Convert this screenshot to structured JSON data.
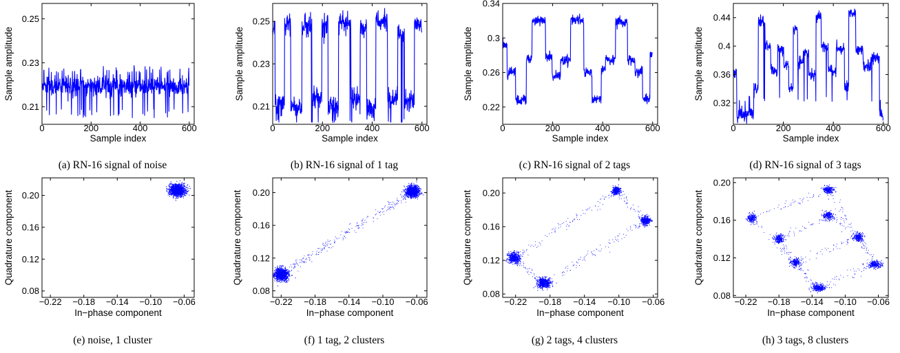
{
  "page": {
    "background": "#ffffff",
    "series_color": "#0000ff"
  },
  "chart_data": [
    {
      "id": "a",
      "type": "line",
      "caption": "(a) RN-16 signal of noise",
      "xlabel": "Sample index",
      "ylabel": "Sample amplitude",
      "xlim": [
        0,
        620
      ],
      "ylim": [
        0.202,
        0.257
      ],
      "xticks": [
        0,
        200,
        400,
        600
      ],
      "xtick_labels": [
        "0",
        "200",
        "400",
        "600"
      ],
      "yticks": [
        0.21,
        0.23,
        0.25
      ],
      "ytick_labels": [
        "0.21",
        "0.23",
        "0.25"
      ],
      "signal": {
        "n": 600,
        "base": 0.2195,
        "noise": 0.0022,
        "high_level": 0.2255,
        "high_prob": 0.06,
        "low_level": 0.209,
        "low_prob": 0.045,
        "spike_floor": 0.205,
        "levels": [],
        "seed": 11
      }
    },
    {
      "id": "b",
      "type": "line",
      "caption": "(b) RN-16 signal of 1 tag",
      "xlabel": "Sample index",
      "ylabel": "Sample amplitude",
      "xlim": [
        0,
        620
      ],
      "ylim": [
        0.2015,
        0.2585
      ],
      "xticks": [
        0,
        200,
        400,
        600
      ],
      "xtick_labels": [
        "0",
        "200",
        "400",
        "600"
      ],
      "yticks": [
        0.21,
        0.23,
        0.25
      ],
      "ytick_labels": [
        "0.21",
        "0.23",
        "0.25"
      ],
      "signal": {
        "n": 600,
        "noise": 0.0026,
        "high_level": 0,
        "high_prob": 0,
        "low_level": 0.204,
        "low_prob": 0.04,
        "spike_floor": 0.2025,
        "levels": [
          [
            0,
            10,
            0.246
          ],
          [
            10,
            48,
            0.212
          ],
          [
            48,
            73,
            0.248
          ],
          [
            73,
            118,
            0.209
          ],
          [
            118,
            158,
            0.248
          ],
          [
            158,
            198,
            0.214
          ],
          [
            198,
            223,
            0.249
          ],
          [
            223,
            265,
            0.21
          ],
          [
            265,
            315,
            0.249
          ],
          [
            315,
            352,
            0.213
          ],
          [
            352,
            378,
            0.247
          ],
          [
            378,
            415,
            0.209
          ],
          [
            415,
            462,
            0.249
          ],
          [
            462,
            503,
            0.213
          ],
          [
            503,
            530,
            0.245
          ],
          [
            530,
            570,
            0.212
          ],
          [
            570,
            600,
            0.248
          ]
        ],
        "seed": 23
      }
    },
    {
      "id": "c",
      "type": "line",
      "caption": "(c) RN-16 signal of 2 tags",
      "xlabel": "Sample index",
      "ylabel": "Sample amplitude",
      "xlim": [
        0,
        620
      ],
      "ylim": [
        0.2,
        0.34
      ],
      "xticks": [
        0,
        200,
        400,
        600
      ],
      "xtick_labels": [
        "0",
        "200",
        "400",
        "600"
      ],
      "yticks": [
        0.22,
        0.26,
        0.3,
        0.34
      ],
      "ytick_labels": [
        "0.22",
        "0.26",
        "0.3",
        "0.34"
      ],
      "signal": {
        "n": 600,
        "noise": 0.003,
        "high_level": 0,
        "high_prob": 0,
        "low_level": 0,
        "low_prob": 0,
        "spike_floor": 0.21,
        "levels": [
          [
            0,
            18,
            0.293
          ],
          [
            18,
            25,
            0.258
          ],
          [
            25,
            52,
            0.262
          ],
          [
            52,
            95,
            0.228
          ],
          [
            95,
            118,
            0.276
          ],
          [
            118,
            172,
            0.32
          ],
          [
            172,
            198,
            0.278
          ],
          [
            198,
            232,
            0.255
          ],
          [
            232,
            272,
            0.275
          ],
          [
            272,
            325,
            0.321
          ],
          [
            325,
            358,
            0.26
          ],
          [
            358,
            395,
            0.23
          ],
          [
            395,
            412,
            0.263
          ],
          [
            412,
            452,
            0.275
          ],
          [
            452,
            500,
            0.319
          ],
          [
            500,
            530,
            0.275
          ],
          [
            530,
            550,
            0.26
          ],
          [
            550,
            560,
            0.262
          ],
          [
            560,
            590,
            0.23
          ],
          [
            590,
            600,
            0.281
          ]
        ],
        "seed": 37
      }
    },
    {
      "id": "d",
      "type": "line",
      "caption": "(d) RN-16 signal of 3 tags",
      "xlabel": "Sample index",
      "ylabel": "Sample amplitude",
      "xlim": [
        0,
        620
      ],
      "ylim": [
        0.29,
        0.46
      ],
      "xticks": [
        0,
        200,
        400,
        600
      ],
      "xtick_labels": [
        "0",
        "200",
        "400",
        "600"
      ],
      "yticks": [
        0.32,
        0.36,
        0.4,
        0.44
      ],
      "ytick_labels": [
        "0.32",
        "0.36",
        "0.4",
        "0.44"
      ],
      "signal": {
        "n": 600,
        "noise": 0.004,
        "high_level": 0,
        "high_prob": 0,
        "low_level": 0.33,
        "low_prob": 0.03,
        "spike_floor": 0.3,
        "levels": [
          [
            0,
            14,
            0.362
          ],
          [
            14,
            82,
            0.304
          ],
          [
            82,
            100,
            0.34
          ],
          [
            100,
            127,
            0.435
          ],
          [
            127,
            150,
            0.4
          ],
          [
            150,
            178,
            0.366
          ],
          [
            178,
            202,
            0.395
          ],
          [
            202,
            222,
            0.374
          ],
          [
            222,
            240,
            0.34
          ],
          [
            240,
            258,
            0.425
          ],
          [
            258,
            280,
            0.378
          ],
          [
            280,
            302,
            0.391
          ],
          [
            302,
            330,
            0.36
          ],
          [
            330,
            352,
            0.442
          ],
          [
            352,
            380,
            0.398
          ],
          [
            380,
            412,
            0.366
          ],
          [
            412,
            445,
            0.395
          ],
          [
            445,
            462,
            0.345
          ],
          [
            462,
            490,
            0.446
          ],
          [
            490,
            520,
            0.396
          ],
          [
            520,
            550,
            0.372
          ],
          [
            550,
            585,
            0.384
          ],
          [
            585,
            600,
            0.305
          ]
        ],
        "seed": 51
      }
    },
    {
      "id": "e",
      "type": "scatter",
      "caption": "(e) noise, 1 cluster",
      "xlabel": "In−phase component",
      "ylabel": "Quadrature component",
      "xlim": [
        -0.23,
        -0.048
      ],
      "ylim": [
        0.072,
        0.222
      ],
      "xticks": [
        -0.22,
        -0.18,
        -0.14,
        -0.1,
        -0.06
      ],
      "xtick_labels": [
        "−0.22",
        "−0.18",
        "−0.14",
        "−0.10",
        "−0.06"
      ],
      "yticks": [
        0.08,
        0.12,
        0.16,
        0.2
      ],
      "ytick_labels": [
        "0.08",
        "0.12",
        "0.16",
        "0.20"
      ],
      "clusters": [
        {
          "x": -0.068,
          "y": 0.2065,
          "sx": 0.0045,
          "sy": 0.0038,
          "n": 1300
        }
      ],
      "bridges": [],
      "seed": 101
    },
    {
      "id": "f",
      "type": "scatter",
      "caption": "(f) 1 tag, 2 clusters",
      "xlabel": "In−phase component",
      "ylabel": "Quadrature component",
      "xlim": [
        -0.23,
        -0.048
      ],
      "ylim": [
        0.072,
        0.218
      ],
      "xticks": [
        -0.22,
        -0.18,
        -0.14,
        -0.1,
        -0.06
      ],
      "xtick_labels": [
        "−0.22",
        "−0.18",
        "−0.14",
        "−0.10",
        "−0.06"
      ],
      "yticks": [
        0.08,
        0.12,
        0.16,
        0.2
      ],
      "ytick_labels": [
        "0.08",
        "0.12",
        "0.16",
        "0.20"
      ],
      "clusters": [
        {
          "x": -0.22,
          "y": 0.1,
          "sx": 0.0042,
          "sy": 0.0038,
          "n": 950
        },
        {
          "x": -0.065,
          "y": 0.2015,
          "sx": 0.0042,
          "sy": 0.0035,
          "n": 950
        }
      ],
      "bridges": [
        {
          "from": [
            -0.22,
            0.1
          ],
          "to": [
            -0.065,
            0.2015
          ],
          "n": 260,
          "jitter": 0.0028
        }
      ],
      "seed": 202
    },
    {
      "id": "g",
      "type": "scatter",
      "caption": "(g) 2 tags, 4 clusters",
      "xlabel": "In−phase component",
      "ylabel": "Quadrature component",
      "xlim": [
        -0.235,
        -0.055
      ],
      "ylim": [
        0.076,
        0.218
      ],
      "xticks": [
        -0.22,
        -0.18,
        -0.14,
        -0.1,
        -0.06
      ],
      "xtick_labels": [
        "−0.22",
        "−0.18",
        "−0.14",
        "−0.10",
        "−0.06"
      ],
      "yticks": [
        0.08,
        0.12,
        0.16,
        0.2
      ],
      "ytick_labels": [
        "0.08",
        "0.12",
        "0.16",
        "0.20"
      ],
      "clusters": [
        {
          "x": -0.222,
          "y": 0.123,
          "sx": 0.0036,
          "sy": 0.0032,
          "n": 450
        },
        {
          "x": -0.187,
          "y": 0.093,
          "sx": 0.004,
          "sy": 0.003,
          "n": 520
        },
        {
          "x": -0.103,
          "y": 0.2025,
          "sx": 0.0025,
          "sy": 0.0022,
          "n": 300
        },
        {
          "x": -0.069,
          "y": 0.167,
          "sx": 0.0028,
          "sy": 0.0025,
          "n": 350
        }
      ],
      "bridges": [
        {
          "from": [
            -0.222,
            0.123
          ],
          "to": [
            -0.187,
            0.093
          ],
          "n": 60,
          "jitter": 0.0022
        },
        {
          "from": [
            -0.222,
            0.123
          ],
          "to": [
            -0.103,
            0.2025
          ],
          "n": 100,
          "jitter": 0.0024
        },
        {
          "from": [
            -0.187,
            0.093
          ],
          "to": [
            -0.069,
            0.167
          ],
          "n": 100,
          "jitter": 0.0024
        },
        {
          "from": [
            -0.103,
            0.2025
          ],
          "to": [
            -0.069,
            0.167
          ],
          "n": 50,
          "jitter": 0.0022
        }
      ],
      "seed": 303
    },
    {
      "id": "h",
      "type": "scatter",
      "caption": "(h) 3 tags, 8 clusters",
      "xlabel": "In−phase component",
      "ylabel": "Quadrature component",
      "xlim": [
        -0.235,
        -0.048
      ],
      "ylim": [
        0.078,
        0.205
      ],
      "xticks": [
        -0.22,
        -0.18,
        -0.14,
        -0.1,
        -0.06
      ],
      "xtick_labels": [
        "−0.22",
        "−0.18",
        "−0.14",
        "−0.10",
        "−0.06"
      ],
      "yticks": [
        0.08,
        0.12,
        0.16,
        0.2
      ],
      "ytick_labels": [
        "0.08",
        "0.12",
        "0.16",
        "0.20"
      ],
      "clusters": [
        {
          "x": -0.213,
          "y": 0.162,
          "sx": 0.003,
          "sy": 0.0022,
          "n": 200
        },
        {
          "x": -0.18,
          "y": 0.14,
          "sx": 0.003,
          "sy": 0.0022,
          "n": 200
        },
        {
          "x": -0.16,
          "y": 0.115,
          "sx": 0.0028,
          "sy": 0.002,
          "n": 180
        },
        {
          "x": -0.132,
          "y": 0.088,
          "sx": 0.004,
          "sy": 0.0018,
          "n": 260
        },
        {
          "x": -0.12,
          "y": 0.192,
          "sx": 0.0033,
          "sy": 0.002,
          "n": 220
        },
        {
          "x": -0.12,
          "y": 0.165,
          "sx": 0.003,
          "sy": 0.002,
          "n": 200
        },
        {
          "x": -0.084,
          "y": 0.142,
          "sx": 0.0028,
          "sy": 0.0022,
          "n": 200
        },
        {
          "x": -0.064,
          "y": 0.113,
          "sx": 0.004,
          "sy": 0.0018,
          "n": 240
        }
      ],
      "bridges": [
        {
          "from": [
            -0.213,
            0.162
          ],
          "to": [
            -0.12,
            0.192
          ],
          "n": 55,
          "jitter": 0.0022
        },
        {
          "from": [
            -0.18,
            0.14
          ],
          "to": [
            -0.12,
            0.165
          ],
          "n": 45,
          "jitter": 0.0022
        },
        {
          "from": [
            -0.16,
            0.115
          ],
          "to": [
            -0.084,
            0.142
          ],
          "n": 45,
          "jitter": 0.0022
        },
        {
          "from": [
            -0.132,
            0.088
          ],
          "to": [
            -0.064,
            0.113
          ],
          "n": 55,
          "jitter": 0.0022
        },
        {
          "from": [
            -0.213,
            0.162
          ],
          "to": [
            -0.132,
            0.088
          ],
          "n": 55,
          "jitter": 0.0022
        },
        {
          "from": [
            -0.12,
            0.192
          ],
          "to": [
            -0.064,
            0.113
          ],
          "n": 55,
          "jitter": 0.0022
        },
        {
          "from": [
            -0.18,
            0.14
          ],
          "to": [
            -0.16,
            0.115
          ],
          "n": 30,
          "jitter": 0.0022
        },
        {
          "from": [
            -0.12,
            0.165
          ],
          "to": [
            -0.084,
            0.142
          ],
          "n": 30,
          "jitter": 0.0022
        },
        {
          "from": [
            -0.16,
            0.115
          ],
          "to": [
            -0.132,
            0.088
          ],
          "n": 30,
          "jitter": 0.0022
        },
        {
          "from": [
            -0.084,
            0.142
          ],
          "to": [
            -0.064,
            0.113
          ],
          "n": 30,
          "jitter": 0.0022
        }
      ],
      "seed": 404
    }
  ]
}
